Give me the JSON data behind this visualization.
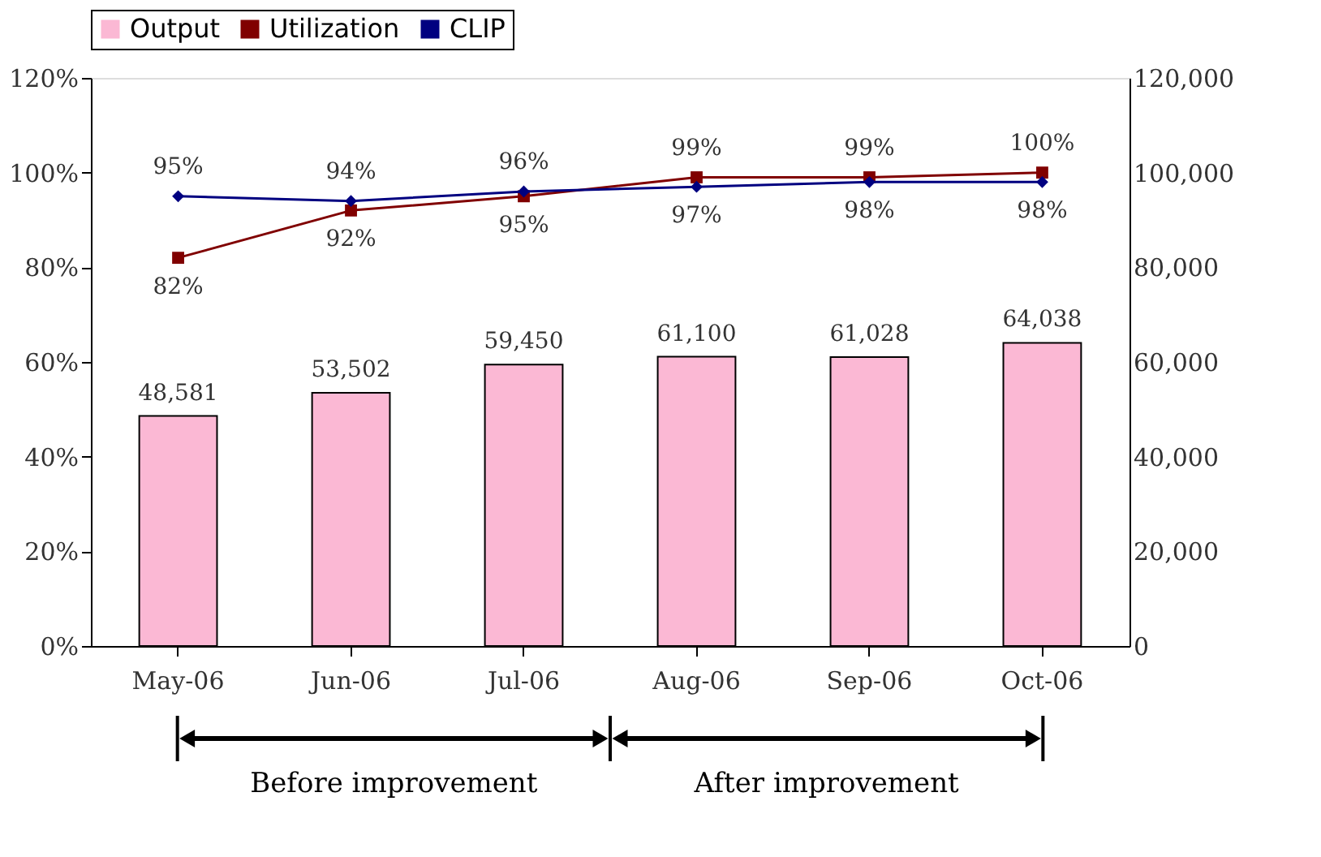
{
  "chart_data": {
    "type": "bar",
    "categories": [
      "May-06",
      "Jun-06",
      "Jul-06",
      "Aug-06",
      "Sep-06",
      "Oct-06"
    ],
    "series": [
      {
        "name": "Output",
        "axis": "y2",
        "color": "#fbb8d4",
        "values": [
          48581,
          53502,
          59450,
          61100,
          61028,
          64038
        ],
        "value_labels": [
          "48,581",
          "53,502",
          "59,450",
          "61,100",
          "61,028",
          "64,038"
        ]
      },
      {
        "name": "Utilization",
        "type": "line",
        "marker": "square",
        "color": "#800000",
        "values": [
          82,
          92,
          95,
          99,
          99,
          100
        ],
        "value_labels": [
          "82%",
          "92%",
          "95%",
          "99%",
          "99%",
          "100%"
        ]
      },
      {
        "name": "CLIP",
        "type": "line",
        "marker": "diamond",
        "color": "#000080",
        "values": [
          95,
          94,
          96,
          97,
          98,
          98
        ],
        "value_labels": [
          "95%",
          "94%",
          "96%",
          "97%",
          "98%",
          "98%"
        ]
      }
    ],
    "ylim": [
      0,
      120
    ],
    "yticks": [
      {
        "value": 0,
        "label": "0%"
      },
      {
        "value": 20,
        "label": "20%"
      },
      {
        "value": 40,
        "label": "40%"
      },
      {
        "value": 60,
        "label": "60%"
      },
      {
        "value": 80,
        "label": "80%"
      },
      {
        "value": 100,
        "label": "100%"
      },
      {
        "value": 120,
        "label": "120%"
      }
    ],
    "y2lim": [
      0,
      120000
    ],
    "y2ticks": [
      0,
      {
        "value": 20000,
        "label": "20,000"
      },
      {
        "value": 40000,
        "label": "40,000"
      },
      {
        "value": 60000,
        "label": "60,000"
      },
      {
        "value": 80000,
        "label": "80,000"
      },
      {
        "value": 100000,
        "label": "100,000"
      },
      {
        "value": 120000,
        "label": "120,000"
      }
    ],
    "annotations": [
      "Before improvement",
      "After improvement"
    ],
    "legend": "top",
    "grid": false
  }
}
